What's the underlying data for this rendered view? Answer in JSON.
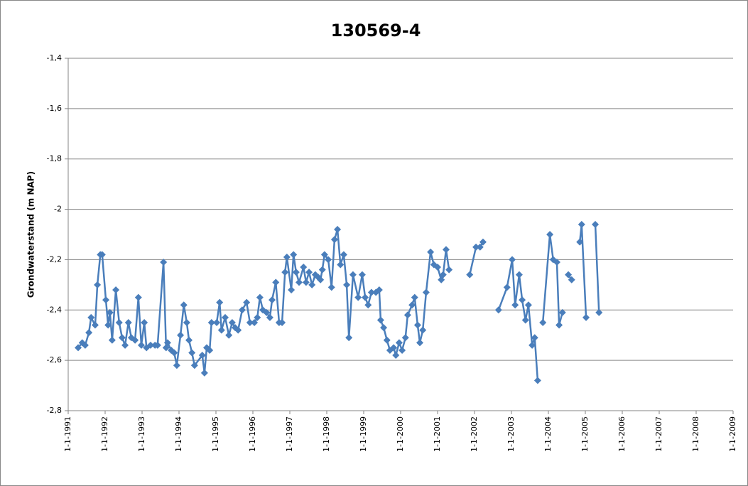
{
  "chart_data": {
    "type": "line",
    "title": "130569-4",
    "y_label": "Grondwaterstand (m NAP)",
    "x": [
      1991.27,
      1991.38,
      1991.46,
      1991.56,
      1991.62,
      1991.73,
      1991.79,
      1991.87,
      1991.92,
      1992.02,
      1992.08,
      1992.13,
      1992.19,
      1992.29,
      1992.38,
      1992.46,
      1992.54,
      1992.63,
      1992.71,
      1992.81,
      1992.9,
      1992.98,
      1993.06,
      1993.12,
      1993.23,
      1993.35,
      1993.42,
      1993.58,
      1993.65,
      1993.69,
      1993.79,
      1993.87,
      1993.94,
      1994.04,
      1994.13,
      1994.21,
      1994.27,
      1994.35,
      1994.42,
      1994.63,
      1994.69,
      1994.75,
      1994.83,
      1994.88,
      1995.02,
      1995.1,
      1995.15,
      1995.25,
      1995.35,
      1995.44,
      1995.52,
      1995.6,
      1995.71,
      1995.83,
      1995.92,
      1996.04,
      1996.12,
      1996.19,
      1996.27,
      1996.37,
      1996.46,
      1996.52,
      1996.62,
      1996.71,
      1996.79,
      1996.87,
      1996.92,
      1997.04,
      1997.1,
      1997.17,
      1997.25,
      1997.37,
      1997.44,
      1997.52,
      1997.6,
      1997.69,
      1997.77,
      1997.83,
      1997.88,
      1997.94,
      1998.04,
      1998.13,
      1998.21,
      1998.29,
      1998.37,
      1998.46,
      1998.54,
      1998.6,
      1998.71,
      1998.85,
      1998.96,
      1999.04,
      1999.12,
      1999.21,
      1999.33,
      1999.42,
      1999.46,
      1999.54,
      1999.63,
      1999.71,
      1999.81,
      1999.87,
      1999.96,
      2000.04,
      2000.13,
      2000.19,
      2000.31,
      2000.38,
      2000.46,
      2000.52,
      2000.6,
      2000.69,
      2000.81,
      2000.9,
      2001.0,
      2001.1,
      2001.15,
      2001.23,
      2001.31,
      2001.6,
      2001.87,
      2002.04,
      2002.15,
      2002.23,
      2002.4,
      2002.65,
      2002.88,
      2003.02,
      2003.1,
      2003.21,
      2003.29,
      2003.38,
      2003.46,
      2003.56,
      2003.63,
      2003.71,
      2003.77,
      2003.85,
      2004.04,
      2004.13,
      2004.23,
      2004.29,
      2004.38,
      2004.45,
      2004.54,
      2004.63,
      2004.7,
      2004.85,
      2004.9,
      2005.02,
      2005.1,
      2005.27,
      2005.37
    ],
    "series": [
      {
        "name": "130569-4",
        "color": "#4a7ebb",
        "values": [
          -2.55,
          -2.53,
          -2.54,
          -2.49,
          -2.43,
          -2.46,
          -2.3,
          -2.18,
          -2.18,
          -2.36,
          -2.46,
          -2.41,
          -2.52,
          -2.32,
          -2.45,
          -2.51,
          -2.54,
          -2.45,
          -2.51,
          -2.52,
          -2.35,
          -2.54,
          -2.45,
          -2.55,
          -2.54,
          -2.54,
          -2.54,
          -2.21,
          -2.55,
          -2.53,
          -2.56,
          -2.57,
          -2.62,
          -2.5,
          -2.38,
          -2.45,
          -2.52,
          -2.57,
          -2.62,
          -2.58,
          -2.65,
          -2.55,
          -2.56,
          -2.45,
          -2.45,
          -2.37,
          -2.48,
          -2.43,
          -2.5,
          -2.45,
          -2.47,
          -2.48,
          -2.4,
          -2.37,
          -2.45,
          -2.45,
          -2.43,
          -2.35,
          -2.4,
          -2.41,
          -2.43,
          -2.36,
          -2.29,
          -2.45,
          -2.45,
          -2.25,
          -2.19,
          -2.32,
          -2.18,
          -2.25,
          -2.29,
          -2.23,
          -2.29,
          -2.25,
          -2.3,
          -2.26,
          -2.27,
          -2.28,
          -2.24,
          -2.18,
          -2.2,
          -2.31,
          -2.12,
          -2.08,
          -2.22,
          -2.18,
          -2.3,
          -2.51,
          -2.26,
          -2.35,
          -2.26,
          -2.35,
          -2.38,
          -2.33,
          -2.33,
          -2.32,
          -2.44,
          -2.47,
          -2.52,
          -2.56,
          -2.55,
          -2.58,
          -2.53,
          -2.56,
          -2.51,
          -2.42,
          -2.38,
          -2.35,
          -2.46,
          -2.53,
          -2.48,
          -2.33,
          -2.17,
          -2.22,
          -2.23,
          -2.28,
          -2.26,
          -2.16,
          -2.24,
          null,
          -2.26,
          -2.15,
          -2.15,
          -2.13,
          null,
          -2.4,
          -2.31,
          -2.2,
          -2.38,
          -2.26,
          -2.36,
          -2.44,
          -2.38,
          -2.54,
          -2.51,
          -2.68,
          null,
          -2.45,
          -2.1,
          -2.2,
          -2.21,
          -2.46,
          -2.41,
          null,
          -2.26,
          -2.28,
          null,
          -2.13,
          -2.06,
          -2.43,
          null,
          -2.06,
          -2.41
        ]
      }
    ],
    "xlim": [
      1991,
      2009
    ],
    "xticks": [
      {
        "value": 1991,
        "label": "1-1-1991"
      },
      {
        "value": 1992,
        "label": "1-1-1992"
      },
      {
        "value": 1993,
        "label": "1-1-1993"
      },
      {
        "value": 1994,
        "label": "1-1-1994"
      },
      {
        "value": 1995,
        "label": "1-1-1995"
      },
      {
        "value": 1996,
        "label": "1-1-1996"
      },
      {
        "value": 1997,
        "label": "1-1-1997"
      },
      {
        "value": 1998,
        "label": "1-1-1998"
      },
      {
        "value": 1999,
        "label": "1-1-1999"
      },
      {
        "value": 2000,
        "label": "1-1-2000"
      },
      {
        "value": 2001,
        "label": "1-1-2001"
      },
      {
        "value": 2002,
        "label": "1-1-2002"
      },
      {
        "value": 2003,
        "label": "1-1-2003"
      },
      {
        "value": 2004,
        "label": "1-1-2004"
      },
      {
        "value": 2005,
        "label": "1-1-2005"
      },
      {
        "value": 2006,
        "label": "1-1-2006"
      },
      {
        "value": 2007,
        "label": "1-1-2007"
      },
      {
        "value": 2008,
        "label": "1-1-2008"
      },
      {
        "value": 2009,
        "label": "1-1-2009"
      }
    ],
    "ylim": [
      -2.8,
      -1.4
    ],
    "yticks": [
      {
        "value": -2.8,
        "label": "-2,8"
      },
      {
        "value": -2.6,
        "label": "-2,6"
      },
      {
        "value": -2.4,
        "label": "-2,4"
      },
      {
        "value": -2.2,
        "label": "-2,2"
      },
      -2,
      {
        "value": -1.8,
        "label": "-1,8"
      },
      {
        "value": -1.6,
        "label": "-1,6"
      },
      {
        "value": -1.4,
        "label": "-1,4"
      }
    ],
    "grid": true,
    "markers": "diamond"
  }
}
